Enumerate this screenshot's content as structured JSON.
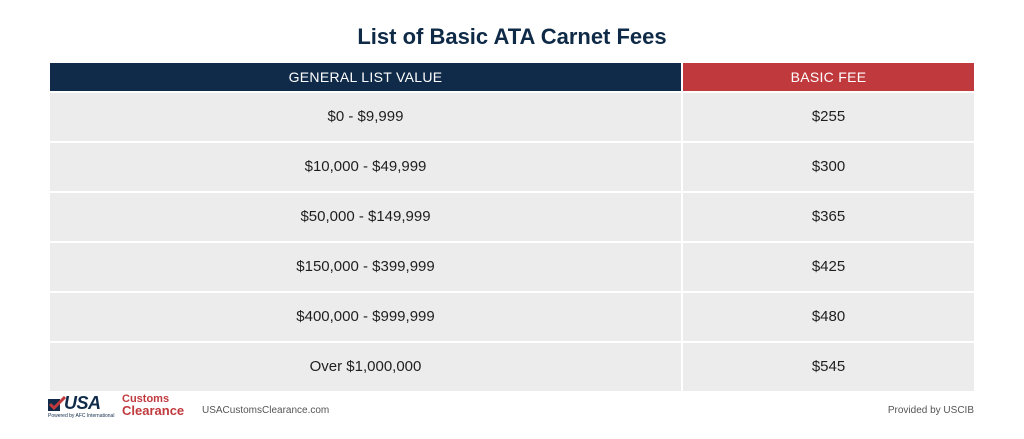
{
  "title": "List of Basic ATA Carnet Fees",
  "table": {
    "headers": {
      "value": "GENERAL LIST VALUE",
      "fee": "BASIC FEE"
    },
    "rows": [
      {
        "value": "$0 - $9,999",
        "fee": "$255"
      },
      {
        "value": "$10,000 - $49,999",
        "fee": "$300"
      },
      {
        "value": "$50,000 - $149,999",
        "fee": "$365"
      },
      {
        "value": "$150,000 - $399,999",
        "fee": "$425"
      },
      {
        "value": "$400,000 - $999,999",
        "fee": "$480"
      },
      {
        "value": "Over $1,000,000",
        "fee": "$545"
      }
    ]
  },
  "colors": {
    "navy": "#0f2b49",
    "red": "#c0393d",
    "row_bg": "#ececec"
  },
  "footer": {
    "logo": {
      "usa": "USA",
      "customs": "Customs",
      "clearance": "Clearance",
      "powered": "Powered by AFC International"
    },
    "website": "USACustomsClearance.com",
    "provided_by": "Provided by USCIB"
  }
}
